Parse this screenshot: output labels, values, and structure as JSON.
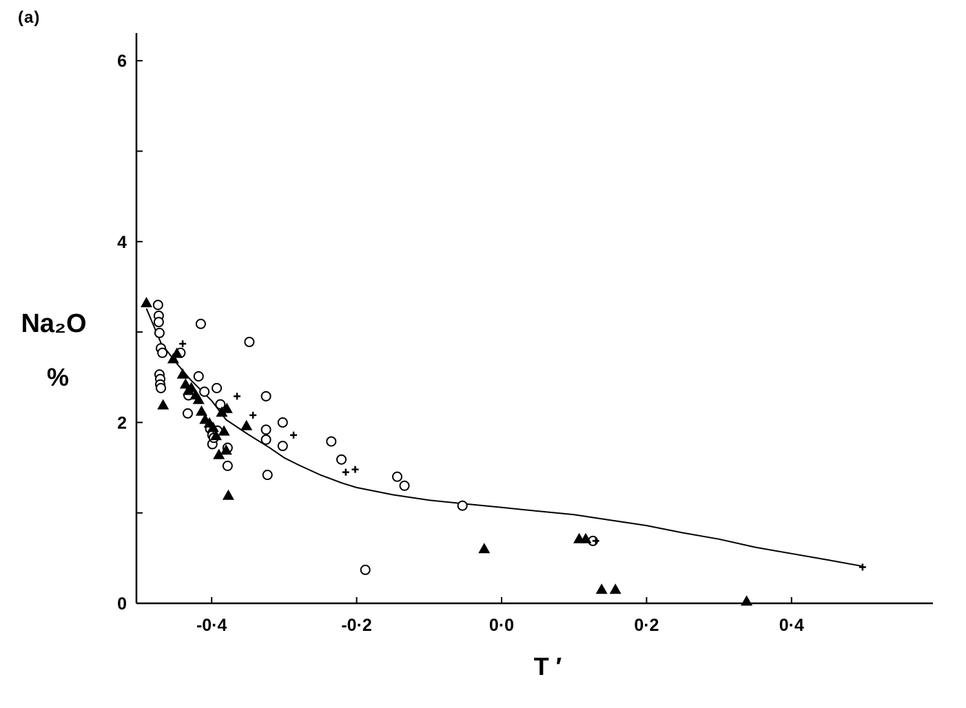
{
  "panel_label": "(a)",
  "chart_data": {
    "type": "scatter",
    "xlabel": "T ′",
    "ylabel": "Na₂O",
    "ylabel_unit": "%",
    "xlim": [
      -0.5,
      0.6
    ],
    "ylim": [
      0,
      6.3
    ],
    "x_ticks": [
      {
        "value": -0.4,
        "label": "-0·4"
      },
      {
        "value": -0.2,
        "label": "-0·2"
      },
      {
        "value": 0.0,
        "label": "0·0"
      },
      {
        "value": 0.2,
        "label": "0·2"
      },
      {
        "value": 0.4,
        "label": "0·4"
      }
    ],
    "y_ticks": [
      {
        "value": 0,
        "label": "0"
      },
      {
        "value": 1,
        "label": ""
      },
      {
        "value": 2,
        "label": "2"
      },
      {
        "value": 3,
        "label": ""
      },
      {
        "value": 4,
        "label": "4"
      },
      {
        "value": 5,
        "label": ""
      },
      {
        "value": 6,
        "label": "6"
      }
    ],
    "grid": false,
    "series": [
      {
        "marker": "open-circle",
        "x": [
          -0.474,
          -0.473,
          -0.473,
          -0.472,
          -0.472,
          -0.471,
          -0.471,
          -0.47,
          -0.47,
          -0.468,
          -0.443,
          -0.418,
          -0.415,
          -0.433,
          -0.432,
          -0.41,
          -0.402,
          -0.399,
          -0.399,
          -0.397,
          -0.392,
          -0.388,
          -0.378,
          -0.378,
          -0.348,
          -0.325,
          -0.325,
          -0.325,
          -0.323,
          -0.302,
          -0.302,
          -0.235,
          -0.221,
          -0.188,
          -0.144,
          -0.134,
          -0.054,
          0.126,
          -0.393
        ],
        "y": [
          3.3,
          3.18,
          3.11,
          2.99,
          2.53,
          2.48,
          2.42,
          2.38,
          2.82,
          2.77,
          2.77,
          2.51,
          3.09,
          2.1,
          2.3,
          2.34,
          1.93,
          1.86,
          1.76,
          1.83,
          1.91,
          2.2,
          1.72,
          1.52,
          2.89,
          2.29,
          1.92,
          1.81,
          1.42,
          2.0,
          1.74,
          1.79,
          1.59,
          0.37,
          1.4,
          1.3,
          1.08,
          0.69,
          2.38
        ]
      },
      {
        "marker": "filled-triangle",
        "x": [
          -0.49,
          -0.467,
          -0.453,
          -0.448,
          -0.44,
          -0.436,
          -0.432,
          -0.428,
          -0.422,
          -0.418,
          -0.414,
          -0.409,
          -0.403,
          -0.398,
          -0.394,
          -0.39,
          -0.386,
          -0.383,
          -0.38,
          -0.377,
          -0.352,
          -0.379,
          -0.024,
          0.107,
          0.116,
          0.138,
          0.157,
          0.338
        ],
        "y": [
          3.32,
          2.19,
          2.7,
          2.76,
          2.53,
          2.42,
          2.35,
          2.38,
          2.3,
          2.25,
          2.12,
          2.03,
          1.99,
          1.94,
          1.85,
          1.64,
          2.11,
          1.9,
          1.69,
          1.19,
          1.96,
          2.15,
          0.6,
          0.71,
          0.71,
          0.15,
          0.15,
          0.02
        ]
      },
      {
        "marker": "cross",
        "x": [
          -0.44,
          -0.365,
          -0.343,
          -0.287,
          -0.215,
          -0.202,
          0.13,
          0.498
        ],
        "y": [
          2.87,
          2.29,
          2.08,
          1.86,
          1.45,
          1.48,
          0.69,
          0.4
        ]
      }
    ],
    "trend_line": {
      "x": [
        -0.49,
        -0.47,
        -0.45,
        -0.43,
        -0.41,
        -0.4,
        -0.38,
        -0.35,
        -0.32,
        -0.3,
        -0.28,
        -0.25,
        -0.22,
        -0.2,
        -0.15,
        -0.1,
        -0.05,
        0.0,
        0.05,
        0.1,
        0.15,
        0.2,
        0.25,
        0.3,
        0.35,
        0.4,
        0.45,
        0.498
      ],
      "y": [
        3.26,
        2.88,
        2.67,
        2.48,
        2.32,
        2.24,
        2.03,
        1.87,
        1.72,
        1.61,
        1.53,
        1.42,
        1.33,
        1.28,
        1.2,
        1.14,
        1.1,
        1.06,
        1.02,
        0.98,
        0.92,
        0.86,
        0.78,
        0.71,
        0.62,
        0.55,
        0.48,
        0.41
      ]
    }
  }
}
